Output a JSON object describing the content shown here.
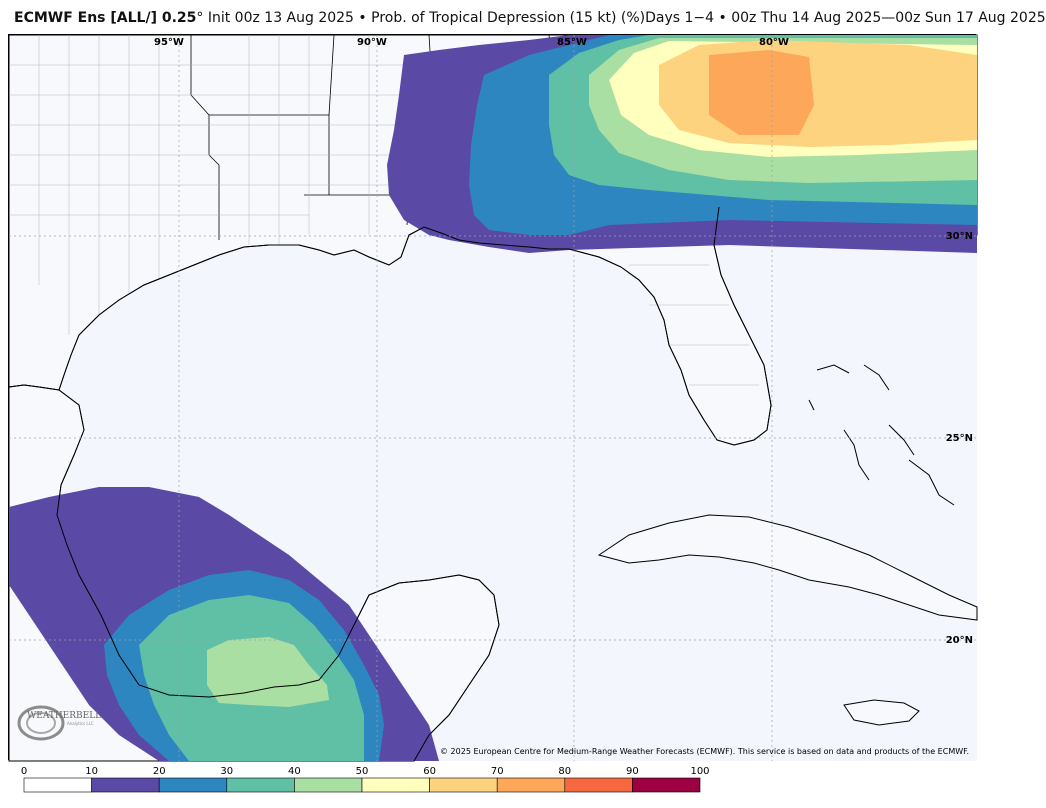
{
  "header": {
    "model": "ECMWF Ens [ALL/] 0.25",
    "degree": "°",
    "rest": " Init 00z 13 Aug 2025 • Prob. of Tropical Depression (15 kt) (%)Days 1−4 • 00z Thu 14 Aug 2025—00z Sun 17 Aug 2025"
  },
  "map": {
    "lon_labels": [
      "95°W",
      "90°W",
      "85°W",
      "80°W"
    ],
    "lat_labels": [
      "30°N",
      "25°N",
      "20°N"
    ],
    "copyright": "© 2025 European Centre for Medium-Range Weather Forecasts (ECMWF). This service is based on data and products of the ECMWF.",
    "logo_text": "WEATHERBELL",
    "logo_sub": "Analytics LLC"
  },
  "colorbar": {
    "ticks": [
      "0",
      "10",
      "20",
      "30",
      "40",
      "50",
      "60",
      "70",
      "80",
      "90",
      "100"
    ],
    "colors": [
      "#ffffff",
      "#5a4aa5",
      "#2e86c0",
      "#5fc0a5",
      "#a9dfa2",
      "#ffffbe",
      "#fdd37f",
      "#fca75a",
      "#f6683f",
      "#9e0142"
    ]
  },
  "palette": {
    "ocean": "#f3f6fd",
    "land": "#f8f9fd",
    "coast": "#000000",
    "county": "#aeb4c4"
  }
}
